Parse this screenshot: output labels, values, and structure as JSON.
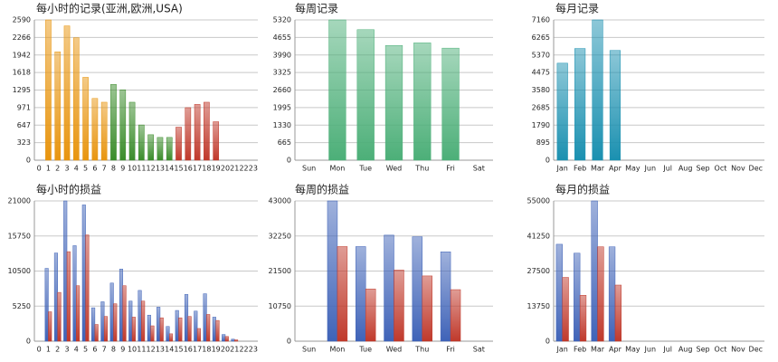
{
  "chart_data": [
    {
      "type": "bar",
      "title": "每小时的记录(亚洲,欧洲,USA)",
      "categories": [
        0,
        1,
        2,
        3,
        4,
        5,
        6,
        7,
        8,
        9,
        10,
        11,
        12,
        13,
        14,
        15,
        16,
        17,
        18,
        19,
        20,
        21,
        22,
        23
      ],
      "values": [
        0,
        2590,
        2000,
        2480,
        2260,
        1530,
        1140,
        1070,
        1400,
        1300,
        1070,
        650,
        470,
        420,
        420,
        610,
        970,
        1030,
        1070,
        710,
        0,
        0,
        0,
        0
      ],
      "colors": [
        "#e8950f",
        "#e8950f",
        "#e8950f",
        "#e8950f",
        "#e8950f",
        "#e8950f",
        "#e8950f",
        "#e8950f",
        "#3a8c2a",
        "#3a8c2a",
        "#3a8c2a",
        "#3a8c2a",
        "#3a8c2a",
        "#3a8c2a",
        "#3a8c2a",
        "#c0392b",
        "#c0392b",
        "#c0392b",
        "#c0392b",
        "#c0392b",
        "#c0392b",
        "#c0392b",
        "#c0392b",
        "#c0392b"
      ],
      "ylim": [
        0,
        2590
      ],
      "yticks": [
        0,
        323,
        647,
        971,
        1295,
        1618,
        1942,
        2266,
        2590
      ],
      "grid": true
    },
    {
      "type": "bar",
      "title": "每周记录",
      "categories": [
        "Sun",
        "Mon",
        "Tue",
        "Wed",
        "Thu",
        "Fri",
        "Sat"
      ],
      "values": [
        0,
        5320,
        4950,
        4350,
        4450,
        4250,
        0
      ],
      "color": "#4caf78",
      "ylim": [
        0,
        5320
      ],
      "yticks": [
        0,
        665,
        1330,
        1995,
        2660,
        3325,
        3990,
        4655,
        5320
      ],
      "grid": true
    },
    {
      "type": "bar",
      "title": "每月记录",
      "categories": [
        "Jan",
        "Feb",
        "Mar",
        "Apr",
        "May",
        "Jun",
        "Jul",
        "Aug",
        "Sep",
        "Oct",
        "Nov",
        "Dec"
      ],
      "values": [
        4950,
        5700,
        7160,
        5600,
        0,
        0,
        0,
        0,
        0,
        0,
        0,
        0
      ],
      "color": "#1a90b0",
      "ylim": [
        0,
        7160
      ],
      "yticks": [
        0,
        895,
        1790,
        2685,
        3580,
        4475,
        5370,
        6265,
        7160
      ],
      "grid": true
    },
    {
      "type": "bar",
      "title": "每小时的损益",
      "categories": [
        0,
        1,
        2,
        3,
        4,
        5,
        6,
        7,
        8,
        9,
        10,
        11,
        12,
        13,
        14,
        15,
        16,
        17,
        18,
        19,
        20,
        21,
        22,
        23
      ],
      "series": [
        {
          "color": "#3f63b8",
          "values": [
            0,
            10900,
            13200,
            21000,
            14300,
            20400,
            5000,
            5900,
            8700,
            10800,
            6000,
            7600,
            3900,
            5100,
            2200,
            4600,
            7000,
            4500,
            7100,
            3600,
            1000,
            300,
            0,
            0
          ]
        },
        {
          "color": "#c0392b",
          "values": [
            0,
            4400,
            7300,
            13400,
            8300,
            15900,
            2500,
            3700,
            5600,
            8300,
            3600,
            6000,
            2300,
            3500,
            1100,
            3500,
            3700,
            1900,
            4000,
            3100,
            700,
            200,
            0,
            0
          ]
        }
      ],
      "ylim": [
        0,
        21000
      ],
      "yticks": [
        0,
        5250,
        10500,
        15750,
        21000
      ],
      "grid": true
    },
    {
      "type": "bar",
      "title": "每周的损益",
      "categories": [
        "Sun",
        "Mon",
        "Tue",
        "Wed",
        "Thu",
        "Fri",
        "Sat"
      ],
      "series": [
        {
          "color": "#3f63b8",
          "values": [
            0,
            43000,
            29000,
            32500,
            32000,
            27400,
            0
          ]
        },
        {
          "color": "#c0392b",
          "values": [
            0,
            29000,
            16000,
            21800,
            20000,
            15800,
            0
          ]
        }
      ],
      "ylim": [
        0,
        43000
      ],
      "yticks": [
        0,
        10750,
        21500,
        32250,
        43000
      ],
      "grid": true
    },
    {
      "type": "bar",
      "title": "每月的损益",
      "categories": [
        "Jan",
        "Feb",
        "Mar",
        "Apr",
        "May",
        "Jun",
        "Jul",
        "Aug",
        "Sep",
        "Oct",
        "Nov",
        "Dec"
      ],
      "series": [
        {
          "color": "#3f63b8",
          "values": [
            38000,
            34500,
            55000,
            37000,
            0,
            0,
            0,
            0,
            0,
            0,
            0,
            0
          ]
        },
        {
          "color": "#c0392b",
          "values": [
            25000,
            18000,
            37000,
            22000,
            0,
            0,
            0,
            0,
            0,
            0,
            0,
            0
          ]
        }
      ],
      "ylim": [
        0,
        55000
      ],
      "yticks": [
        0,
        13750,
        27500,
        41250,
        55000
      ],
      "grid": true
    }
  ]
}
